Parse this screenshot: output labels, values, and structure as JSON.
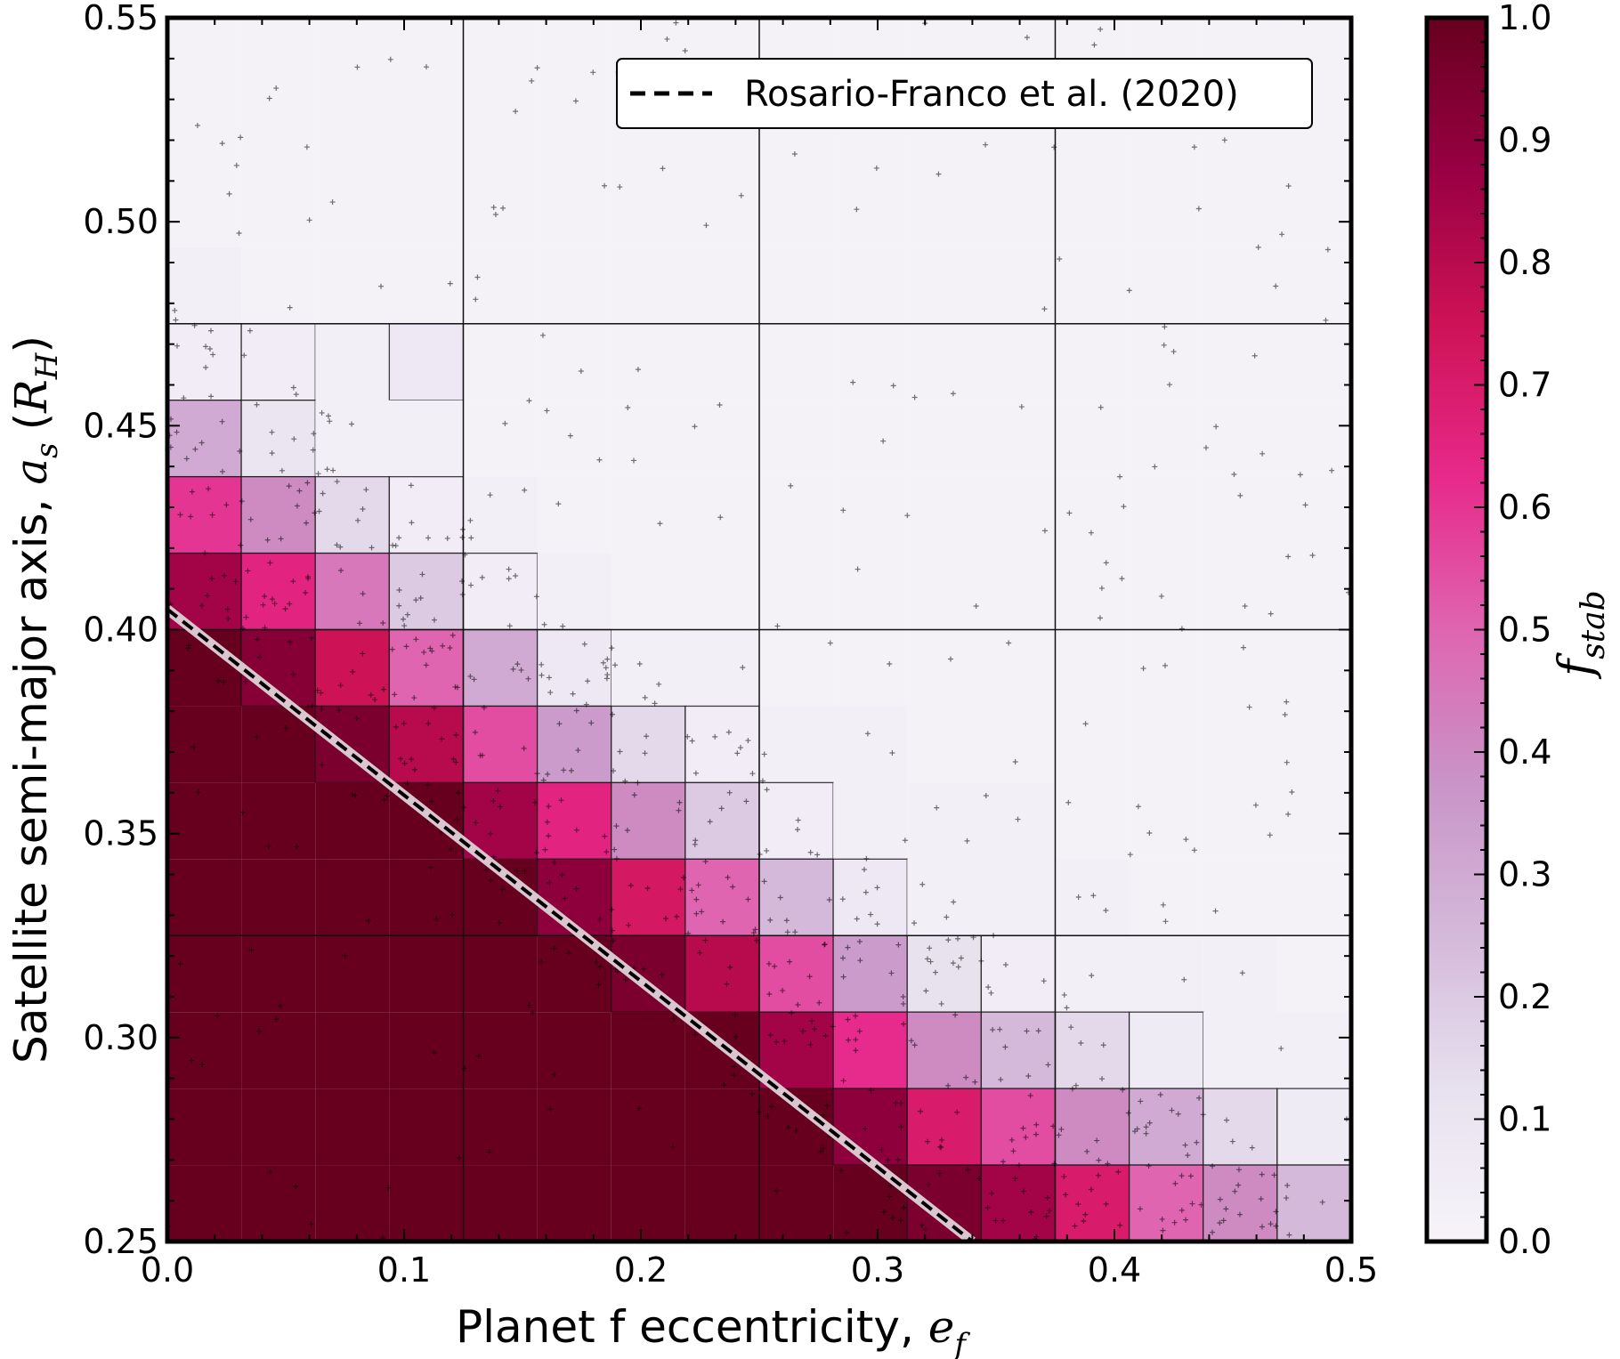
{
  "chart_data": {
    "type": "heatmap",
    "xlabel": "Planet f eccentricity, ",
    "xlabel_math": "e",
    "xlabel_math_sub": "f",
    "ylabel": "Satellite semi-major axis, ",
    "ylabel_math": "a",
    "ylabel_math_sub": "s",
    "ylabel_unit_open": "(",
    "ylabel_unit": "R",
    "ylabel_unit_sub": "H",
    "ylabel_unit_close": ")",
    "xlim": [
      0.0,
      0.5
    ],
    "ylim": [
      0.25,
      0.55
    ],
    "x_ticks": [
      "0.0",
      "0.1",
      "0.2",
      "0.3",
      "0.4",
      "0.5"
    ],
    "y_ticks": [
      "0.25",
      "0.30",
      "0.35",
      "0.40",
      "0.45",
      "0.50",
      "0.55"
    ],
    "colorbar": {
      "label": "f",
      "label_sub": "stab",
      "range": [
        0.0,
        1.0
      ],
      "ticks": [
        "0.0",
        "0.1",
        "0.2",
        "0.3",
        "0.4",
        "0.5",
        "0.6",
        "0.7",
        "0.8",
        "0.9",
        "1.0"
      ],
      "colormap": "PuRd",
      "colors": [
        "#f7f4f9",
        "#e7e1ef",
        "#d4b9da",
        "#c994c7",
        "#df65b0",
        "#e7298a",
        "#ce1256",
        "#980043",
        "#67001f"
      ]
    },
    "grid": false,
    "legend": {
      "placement": "top-right",
      "entries": [
        {
          "name": "Rosario-Franco et al. (2020)",
          "style": "dashed",
          "color": "#000000"
        }
      ]
    },
    "reference_line": {
      "name": "Rosario-Franco et al. (2020)",
      "x": [
        0.0,
        0.34
      ],
      "y": [
        0.405,
        0.25
      ]
    },
    "heatmap": {
      "x_edges_step": 0.03125,
      "y_edges_step": 0.01875,
      "rows_from_top_fstab": [
        [
          0.02,
          0.02,
          0.02,
          0.02,
          0.02,
          0.02,
          0.02,
          0.02,
          0.02,
          0.02,
          0.02,
          0.02,
          0.02,
          0.02,
          0.02,
          0.02
        ],
        [
          0.02,
          0.02,
          0.02,
          0.02,
          0.02,
          0.02,
          0.02,
          0.02,
          0.02,
          0.02,
          0.02,
          0.02,
          0.02,
          0.02,
          0.02,
          0.02
        ],
        [
          0.02,
          0.02,
          0.02,
          0.02,
          0.02,
          0.02,
          0.02,
          0.02,
          0.02,
          0.02,
          0.02,
          0.02,
          0.02,
          0.02,
          0.02,
          0.02
        ],
        [
          0.03,
          0.02,
          0.02,
          0.02,
          0.02,
          0.02,
          0.02,
          0.02,
          0.02,
          0.02,
          0.02,
          0.02,
          0.02,
          0.02,
          0.02,
          0.02
        ],
        [
          0.05,
          0.05,
          0.03,
          0.08,
          0.02,
          0.02,
          0.02,
          0.02,
          0.02,
          0.02,
          0.02,
          0.02,
          0.02,
          0.02,
          0.02,
          0.02
        ],
        [
          0.3,
          0.1,
          0.03,
          0.03,
          0.02,
          0.02,
          0.02,
          0.02,
          0.02,
          0.02,
          0.02,
          0.02,
          0.02,
          0.02,
          0.02,
          0.02
        ],
        [
          0.6,
          0.4,
          0.15,
          0.05,
          0.03,
          0.02,
          0.02,
          0.02,
          0.02,
          0.02,
          0.02,
          0.02,
          0.02,
          0.02,
          0.02,
          0.02
        ],
        [
          0.85,
          0.65,
          0.45,
          0.2,
          0.05,
          0.03,
          0.02,
          0.02,
          0.02,
          0.02,
          0.02,
          0.02,
          0.02,
          0.02,
          0.02,
          0.02
        ],
        [
          1.0,
          0.92,
          0.75,
          0.5,
          0.3,
          0.08,
          0.03,
          0.03,
          0.02,
          0.02,
          0.02,
          0.02,
          0.02,
          0.02,
          0.02,
          0.02
        ],
        [
          1.0,
          1.0,
          0.95,
          0.8,
          0.55,
          0.35,
          0.15,
          0.05,
          0.03,
          0.03,
          0.02,
          0.02,
          0.02,
          0.02,
          0.02,
          0.02
        ],
        [
          1.0,
          1.0,
          1.0,
          1.0,
          0.85,
          0.65,
          0.4,
          0.2,
          0.05,
          0.03,
          0.03,
          0.03,
          0.02,
          0.02,
          0.02,
          0.02
        ],
        [
          1.0,
          1.0,
          1.0,
          1.0,
          1.0,
          0.9,
          0.72,
          0.5,
          0.25,
          0.08,
          0.03,
          0.03,
          0.03,
          0.02,
          0.02,
          0.02
        ],
        [
          1.0,
          1.0,
          1.0,
          1.0,
          1.0,
          1.0,
          0.95,
          0.8,
          0.55,
          0.35,
          0.12,
          0.05,
          0.03,
          0.03,
          0.03,
          0.02
        ],
        [
          1.0,
          1.0,
          1.0,
          1.0,
          1.0,
          1.0,
          1.0,
          1.0,
          0.85,
          0.62,
          0.4,
          0.25,
          0.15,
          0.06,
          0.03,
          0.03
        ],
        [
          1.0,
          1.0,
          1.0,
          1.0,
          1.0,
          1.0,
          1.0,
          1.0,
          1.0,
          0.9,
          0.7,
          0.55,
          0.4,
          0.3,
          0.15,
          0.06
        ],
        [
          1.0,
          1.0,
          1.0,
          1.0,
          1.0,
          1.0,
          1.0,
          1.0,
          1.0,
          1.0,
          0.95,
          0.85,
          0.7,
          0.5,
          0.4,
          0.25
        ]
      ]
    }
  }
}
